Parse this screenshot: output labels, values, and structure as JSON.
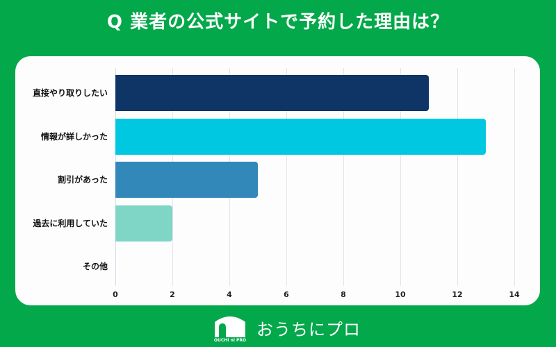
{
  "header": {
    "title": "Q 業者の公式サイトで予約した理由は？"
  },
  "colors": {
    "background": "#03a84a",
    "card": "#fdfdfe",
    "bar_1": "#0f3466",
    "bar_2": "#00c8e0",
    "bar_3": "#3188b9",
    "bar_4": "#7fd6c6",
    "bar_5": "#cccccc"
  },
  "chart_data": {
    "type": "bar",
    "orientation": "horizontal",
    "title": "Q 業者の公式サイトで予約した理由は？",
    "xlabel": "",
    "ylabel": "",
    "categories": [
      "直接やり取りしたい",
      "情報が詳しかった",
      "割引があった",
      "過去に利用していた",
      "その他"
    ],
    "values": [
      11,
      13,
      5,
      2,
      0
    ],
    "xlim": [
      0,
      14
    ],
    "xticks": [
      "0",
      "2",
      "4",
      "6",
      "8",
      "10",
      "12",
      "14"
    ],
    "grid": true,
    "legend": null
  },
  "logo": {
    "text": "おうちにプロ",
    "sub": "OUCHI ni PRO"
  }
}
